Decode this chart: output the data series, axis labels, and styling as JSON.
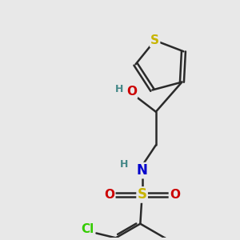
{
  "background_color": "#e8e8e8",
  "bond_color": "#2a2a2a",
  "bond_width": 1.8,
  "colors": {
    "S_thiophene": "#c8b400",
    "S_sulfonyl": "#c8b400",
    "O": "#cc0000",
    "N": "#0000cc",
    "Cl": "#33cc00",
    "C": "#2a2a2a",
    "H": "#448888"
  },
  "font_size": 11,
  "font_size_H": 9
}
